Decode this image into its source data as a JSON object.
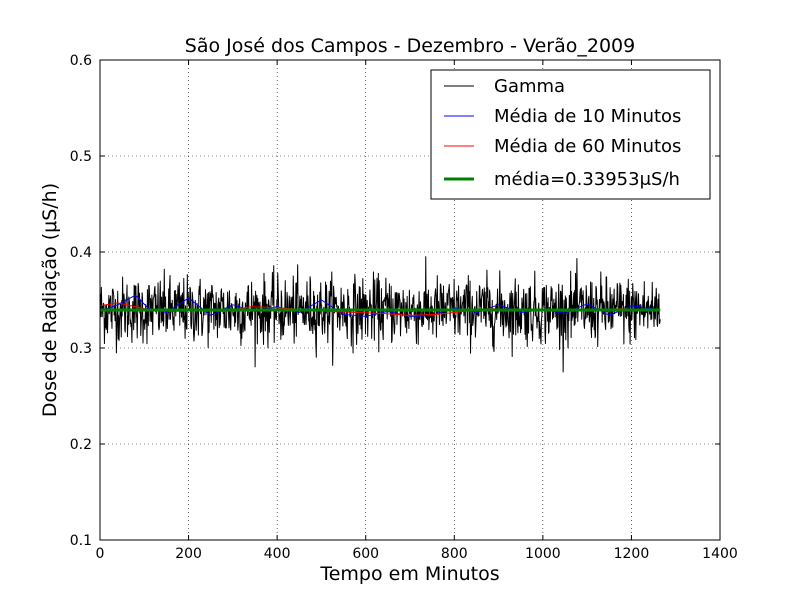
{
  "chart_data": {
    "type": "line",
    "title": "São José dos Campos - Dezembro - Verão_2009",
    "xlabel": "Tempo em Minutos",
    "ylabel": "Dose de Radiação (μS/h)",
    "xlim": [
      0,
      1400
    ],
    "ylim": [
      0.1,
      0.6
    ],
    "xticks": [
      0,
      200,
      400,
      600,
      800,
      1000,
      1200,
      1400
    ],
    "xtick_labels": [
      "0",
      "200",
      "400",
      "600",
      "800",
      "1000",
      "1200",
      "1400"
    ],
    "yticks": [
      0.1,
      0.2,
      0.3,
      0.4,
      0.5,
      0.6
    ],
    "ytick_labels": [
      "0.1",
      "0.2",
      "0.3",
      "0.4",
      "0.5",
      "0.6"
    ],
    "grid": true,
    "legend_position": "top-right",
    "series": [
      {
        "name": "Gamma",
        "color": "#000000",
        "points": 1265,
        "x_range": [
          0,
          1265
        ],
        "mean": 0.33953,
        "std": 0.017,
        "min": 0.275,
        "max": 0.398
      },
      {
        "name": "Média de 10 Minutos",
        "color": "#0000ff",
        "x": [
          0,
          40,
          80,
          110,
          150,
          200,
          250,
          300,
          350,
          400,
          450,
          500,
          550,
          600,
          650,
          700,
          750,
          800,
          850,
          900,
          950,
          1000,
          1050,
          1100,
          1150,
          1200,
          1260
        ],
        "values": [
          0.338,
          0.345,
          0.355,
          0.341,
          0.337,
          0.352,
          0.334,
          0.345,
          0.338,
          0.343,
          0.337,
          0.35,
          0.335,
          0.333,
          0.338,
          0.333,
          0.334,
          0.342,
          0.337,
          0.345,
          0.337,
          0.34,
          0.336,
          0.346,
          0.334,
          0.344,
          0.34
        ]
      },
      {
        "name": "Média de 60 Minutos",
        "color": "#ff0000",
        "x": [
          0,
          40,
          100,
          160,
          220,
          280,
          340,
          400,
          460,
          520,
          580,
          640,
          700,
          760,
          820,
          880,
          940,
          1000,
          1060,
          1120,
          1180,
          1260
        ],
        "values": [
          0.344,
          0.347,
          0.341,
          0.338,
          0.339,
          0.338,
          0.343,
          0.342,
          0.34,
          0.338,
          0.337,
          0.336,
          0.334,
          0.335,
          0.338,
          0.341,
          0.34,
          0.339,
          0.338,
          0.34,
          0.341,
          0.339
        ]
      },
      {
        "name": "média=0.33953μS/h",
        "color": "#008000",
        "x": [
          0,
          1265
        ],
        "values": [
          0.33953,
          0.33953
        ]
      }
    ]
  }
}
